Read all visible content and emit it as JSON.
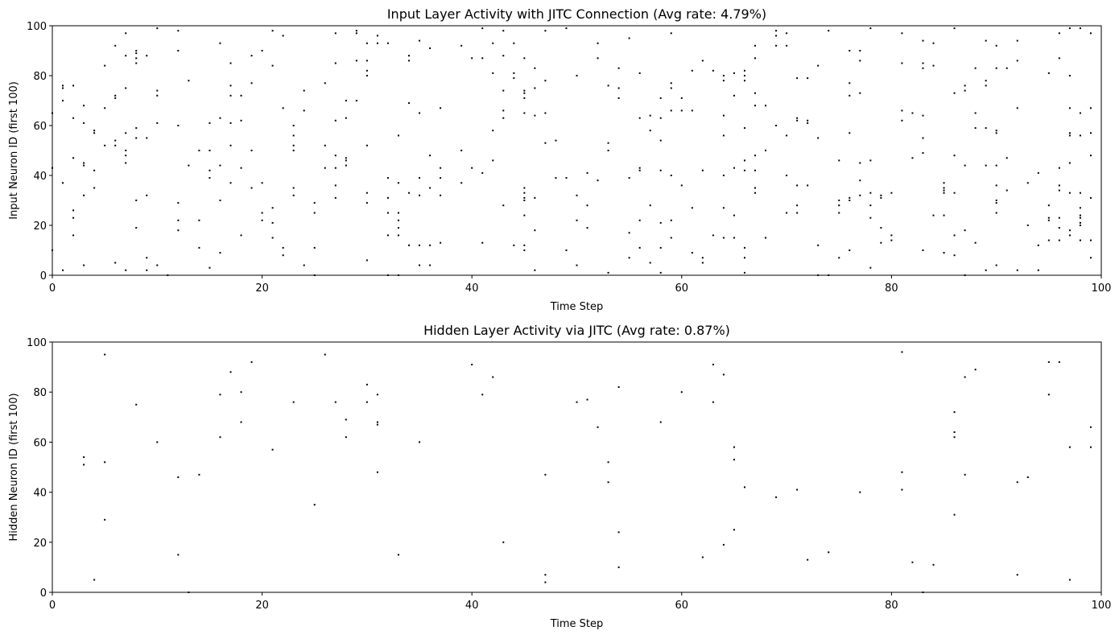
{
  "chart_data": [
    {
      "type": "scatter",
      "title": "Input Layer Activity with JITC Connection (Avg rate: 4.79%)",
      "xlabel": "Time Step",
      "ylabel": "Input Neuron ID (first 100)",
      "color": "#000000",
      "xlim": [
        0,
        100
      ],
      "ylim": [
        0,
        100
      ],
      "xticks": [
        0,
        20,
        40,
        60,
        80,
        100
      ],
      "yticks": [
        0,
        20,
        40,
        60,
        80,
        100
      ],
      "x": [
        0,
        0,
        0,
        1,
        1,
        1,
        1,
        1,
        2,
        2,
        2,
        2,
        2,
        2,
        3,
        3,
        3,
        3,
        3,
        3,
        4,
        4,
        4,
        4,
        5,
        5,
        5,
        6,
        6,
        6,
        6,
        6,
        6,
        7,
        7,
        7,
        7,
        7,
        7,
        7,
        7,
        8,
        8,
        8,
        8,
        8,
        8,
        8,
        8,
        9,
        9,
        9,
        9,
        9,
        10,
        10,
        10,
        10,
        10,
        11,
        12,
        12,
        12,
        12,
        12,
        12,
        13,
        13,
        14,
        14,
        14,
        15,
        15,
        15,
        15,
        15,
        16,
        16,
        16,
        16,
        16,
        17,
        17,
        17,
        17,
        17,
        17,
        18,
        18,
        18,
        18,
        19,
        19,
        19,
        19,
        20,
        20,
        20,
        20,
        21,
        21,
        21,
        21,
        21,
        22,
        22,
        22,
        22,
        23,
        23,
        23,
        23,
        23,
        23,
        24,
        24,
        24,
        25,
        25,
        25,
        25,
        26,
        26,
        26,
        27,
        27,
        27,
        27,
        27,
        27,
        27,
        28,
        28,
        28,
        28,
        28,
        29,
        29,
        29,
        29,
        30,
        30,
        30,
        30,
        30,
        30,
        30,
        30,
        31,
        31,
        32,
        32,
        32,
        32,
        32,
        32,
        33,
        33,
        33,
        33,
        33,
        33,
        33,
        34,
        34,
        34,
        34,
        34,
        35,
        35,
        35,
        35,
        35,
        35,
        36,
        36,
        36,
        36,
        36,
        37,
        37,
        37,
        37,
        37,
        39,
        39,
        39,
        40,
        40,
        41,
        41,
        41,
        41,
        42,
        42,
        42,
        42,
        43,
        43,
        43,
        43,
        43,
        43,
        44,
        44,
        44,
        44,
        45,
        45,
        45,
        45,
        45,
        45,
        45,
        45,
        45,
        45,
        45,
        45,
        46,
        46,
        46,
        46,
        46,
        46,
        47,
        47,
        47,
        47,
        48,
        48,
        49,
        49,
        49,
        50,
        50,
        50,
        50,
        51,
        51,
        51,
        52,
        52,
        52,
        53,
        53,
        53,
        53,
        54,
        54,
        54,
        55,
        55,
        55,
        55,
        56,
        56,
        56,
        56,
        56,
        56,
        57,
        57,
        57,
        57,
        58,
        58,
        58,
        58,
        58,
        58,
        58,
        59,
        59,
        59,
        59,
        59,
        59,
        59,
        60,
        60,
        60,
        61,
        61,
        61,
        61,
        62,
        62,
        62,
        62,
        63,
        63,
        64,
        64,
        64,
        64,
        64,
        64,
        64,
        65,
        65,
        65,
        65,
        65,
        66,
        66,
        66,
        66,
        66,
        66,
        66,
        66,
        66,
        67,
        67,
        67,
        67,
        67,
        67,
        67,
        67,
        68,
        68,
        68,
        69,
        69,
        69,
        69,
        70,
        70,
        70,
        70,
        70,
        71,
        71,
        71,
        71,
        71,
        71,
        72,
        72,
        72,
        72,
        73,
        73,
        73,
        73,
        74,
        74,
        75,
        75,
        75,
        75,
        75,
        76,
        76,
        76,
        76,
        76,
        76,
        76,
        77,
        77,
        77,
        77,
        77,
        77,
        78,
        78,
        78,
        78,
        78,
        78,
        79,
        79,
        79,
        79,
        80,
        80,
        80,
        81,
        81,
        81,
        81,
        82,
        82,
        83,
        83,
        83,
        83,
        83,
        83,
        83,
        84,
        84,
        84,
        85,
        85,
        85,
        85,
        85,
        85,
        86,
        86,
        86,
        86,
        86,
        86,
        87,
        87,
        87,
        87,
        87,
        88,
        88,
        88,
        88,
        89,
        89,
        89,
        89,
        89,
        89,
        90,
        90,
        90,
        90,
        90,
        90,
        90,
        90,
        90,
        90,
        91,
        91,
        91,
        92,
        92,
        92,
        92,
        93,
        93,
        94,
        94,
        94,
        95,
        95,
        95,
        95,
        95,
        96,
        96,
        96,
        96,
        96,
        96,
        96,
        96,
        97,
        97,
        97,
        97,
        97,
        97,
        97,
        97,
        97,
        98,
        98,
        98,
        98,
        98,
        98,
        98,
        98,
        98,
        98,
        99,
        99,
        99,
        99,
        99,
        99,
        99
      ],
      "values": [
        43,
        65,
        10,
        76,
        75,
        70,
        37,
        2,
        76,
        63,
        47,
        26,
        23,
        16,
        68,
        61,
        45,
        44,
        32,
        4,
        58,
        57,
        42,
        35,
        84,
        67,
        52,
        92,
        72,
        71,
        54,
        52,
        5,
        97,
        88,
        75,
        57,
        50,
        48,
        45,
        2,
        90,
        89,
        87,
        85,
        59,
        55,
        30,
        19,
        88,
        55,
        32,
        7,
        2,
        99,
        74,
        72,
        61,
        4,
        0,
        98,
        90,
        60,
        29,
        22,
        18,
        78,
        44,
        50,
        22,
        11,
        61,
        50,
        42,
        39,
        3,
        93,
        63,
        44,
        30,
        9,
        85,
        76,
        72,
        61,
        52,
        37,
        72,
        62,
        43,
        16,
        88,
        77,
        50,
        35,
        90,
        37,
        25,
        22,
        98,
        84,
        27,
        21,
        15,
        96,
        67,
        11,
        8,
        60,
        56,
        52,
        50,
        35,
        32,
        74,
        66,
        4,
        29,
        25,
        11,
        0,
        77,
        52,
        43,
        97,
        85,
        62,
        48,
        43,
        36,
        31,
        70,
        63,
        47,
        46,
        44,
        98,
        97,
        86,
        70,
        93,
        86,
        82,
        80,
        52,
        33,
        29,
        6,
        96,
        93,
        93,
        39,
        31,
        25,
        16,
        0,
        56,
        37,
        25,
        22,
        19,
        16,
        0,
        88,
        86,
        69,
        33,
        12,
        94,
        65,
        39,
        32,
        12,
        4,
        91,
        48,
        35,
        12,
        4,
        67,
        43,
        39,
        32,
        13,
        92,
        50,
        37,
        87,
        43,
        99,
        87,
        41,
        13,
        93,
        81,
        58,
        46,
        98,
        88,
        74,
        66,
        63,
        28,
        93,
        81,
        79,
        12,
        87,
        74,
        73,
        71,
        65,
        35,
        33,
        31,
        30,
        24,
        12,
        10,
        83,
        75,
        64,
        31,
        18,
        2,
        98,
        78,
        65,
        53,
        54,
        39,
        99,
        39,
        10,
        80,
        32,
        22,
        4,
        41,
        28,
        19,
        93,
        87,
        38,
        76,
        53,
        50,
        1,
        83,
        75,
        71,
        95,
        39,
        17,
        7,
        81,
        63,
        43,
        42,
        22,
        11,
        64,
        58,
        28,
        5,
        71,
        63,
        54,
        42,
        21,
        11,
        1,
        97,
        77,
        75,
        66,
        40,
        22,
        15,
        71,
        66,
        36,
        82,
        66,
        27,
        9,
        86,
        42,
        7,
        5,
        82,
        16,
        80,
        78,
        64,
        56,
        40,
        27,
        15,
        81,
        72,
        43,
        24,
        15,
        82,
        80,
        78,
        59,
        46,
        42,
        11,
        7,
        1,
        92,
        87,
        73,
        68,
        48,
        42,
        35,
        33,
        68,
        50,
        15,
        98,
        96,
        92,
        60,
        97,
        92,
        56,
        40,
        25,
        79,
        63,
        62,
        36,
        28,
        25,
        79,
        62,
        61,
        36,
        84,
        55,
        12,
        0,
        98,
        0,
        46,
        30,
        28,
        25,
        7,
        90,
        77,
        72,
        57,
        31,
        30,
        10,
        90,
        86,
        73,
        45,
        38,
        32,
        99,
        46,
        33,
        28,
        23,
        3,
        32,
        31,
        19,
        13,
        33,
        16,
        14,
        97,
        85,
        66,
        62,
        65,
        47,
        94,
        85,
        83,
        64,
        55,
        49,
        10,
        93,
        84,
        24,
        37,
        35,
        34,
        33,
        24,
        9,
        99,
        73,
        48,
        33,
        16,
        8,
        76,
        74,
        44,
        18,
        0,
        83,
        65,
        59,
        13,
        94,
        78,
        76,
        59,
        44,
        2,
        92,
        83,
        58,
        57,
        44,
        36,
        30,
        29,
        25,
        4,
        83,
        47,
        34,
        94,
        86,
        67,
        2,
        37,
        20,
        41,
        12,
        2,
        81,
        28,
        23,
        22,
        14,
        97,
        87,
        43,
        36,
        34,
        23,
        19,
        14,
        99,
        80,
        67,
        57,
        56,
        45,
        33,
        18,
        16,
        99,
        65,
        56,
        33,
        27,
        24,
        23,
        21,
        20,
        14,
        97,
        67,
        57,
        48,
        31,
        14,
        7
      ]
    },
    {
      "type": "scatter",
      "title": "Hidden Layer Activity via JITC (Avg rate: 0.87%)",
      "xlabel": "Time Step",
      "ylabel": "Hidden Neuron ID (first 100)",
      "color": "#000000",
      "xlim": [
        0,
        100
      ],
      "ylim": [
        0,
        100
      ],
      "xticks": [
        0,
        20,
        40,
        60,
        80,
        100
      ],
      "yticks": [
        0,
        20,
        40,
        60,
        80,
        100
      ],
      "x": [
        3,
        3,
        4,
        5,
        5,
        5,
        8,
        10,
        12,
        12,
        13,
        14,
        16,
        16,
        17,
        18,
        18,
        19,
        21,
        23,
        25,
        26,
        27,
        28,
        28,
        30,
        30,
        31,
        31,
        31,
        31,
        33,
        35,
        40,
        41,
        42,
        43,
        47,
        47,
        47,
        50,
        51,
        52,
        53,
        53,
        54,
        54,
        54,
        58,
        60,
        62,
        63,
        63,
        64,
        64,
        65,
        65,
        65,
        66,
        69,
        71,
        72,
        74,
        77,
        81,
        81,
        81,
        82,
        83,
        84,
        86,
        86,
        86,
        86,
        87,
        87,
        88,
        92,
        92,
        93,
        95,
        95,
        96,
        97,
        97,
        99,
        99
      ],
      "values": [
        54,
        51,
        5,
        95,
        52,
        29,
        75,
        60,
        46,
        15,
        0,
        47,
        79,
        62,
        88,
        80,
        68,
        92,
        57,
        76,
        35,
        95,
        76,
        69,
        62,
        83,
        76,
        79,
        68,
        67,
        48,
        15,
        60,
        91,
        79,
        86,
        20,
        47,
        7,
        4,
        76,
        77,
        66,
        52,
        44,
        24,
        82,
        10,
        68,
        80,
        14,
        91,
        76,
        87,
        19,
        58,
        53,
        25,
        42,
        38,
        41,
        13,
        16,
        40,
        96,
        48,
        41,
        12,
        0,
        11,
        72,
        64,
        62,
        31,
        86,
        47,
        89,
        7,
        44,
        46,
        92,
        79,
        92,
        58,
        5,
        66,
        58
      ]
    }
  ]
}
